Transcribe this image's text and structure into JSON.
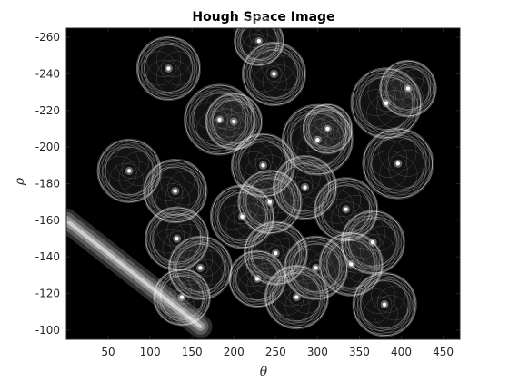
{
  "chart_data": {
    "type": "heatmap",
    "title": "Hough Space Image",
    "xlabel": "θ",
    "ylabel": "ρ",
    "xlim": [
      0,
      470
    ],
    "ylim": [
      -95,
      -265
    ],
    "y_axis_reversed": true,
    "grid": false,
    "legend": "none",
    "colormap": "gray",
    "background_color": "#000000",
    "foreground_color": "#ffffff",
    "axis_color": "#262626",
    "xticks": [
      50,
      100,
      150,
      200,
      250,
      300,
      350,
      400,
      450
    ],
    "xtick_labels": [
      "50",
      "100",
      "150",
      "200",
      "250",
      "300",
      "350",
      "400",
      "450"
    ],
    "yticks": [
      -260,
      -240,
      -220,
      -200,
      -180,
      -160,
      -140,
      -120,
      -100
    ],
    "ytick_labels": [
      "-260",
      "-240",
      "-220",
      "-200",
      "-180",
      "-160",
      "-140",
      "-120",
      "-100"
    ],
    "peaks": [
      {
        "theta": 122,
        "rho": -243,
        "radius": 18
      },
      {
        "theta": 230,
        "rho": -258,
        "radius": 14
      },
      {
        "theta": 248,
        "rho": -240,
        "radius": 18
      },
      {
        "theta": 183,
        "rho": -215,
        "radius": 20
      },
      {
        "theta": 200,
        "rho": -214,
        "radius": 16
      },
      {
        "theta": 75,
        "rho": -187,
        "radius": 18
      },
      {
        "theta": 130,
        "rho": -176,
        "radius": 18
      },
      {
        "theta": 235,
        "rho": -190,
        "radius": 18
      },
      {
        "theta": 300,
        "rho": -204,
        "radius": 20
      },
      {
        "theta": 312,
        "rho": -210,
        "radius": 14
      },
      {
        "theta": 382,
        "rho": -224,
        "radius": 20
      },
      {
        "theta": 408,
        "rho": -232,
        "radius": 16
      },
      {
        "theta": 396,
        "rho": -191,
        "radius": 20
      },
      {
        "theta": 210,
        "rho": -162,
        "radius": 18
      },
      {
        "theta": 243,
        "rho": -170,
        "radius": 18
      },
      {
        "theta": 285,
        "rho": -178,
        "radius": 18
      },
      {
        "theta": 334,
        "rho": -166,
        "radius": 18
      },
      {
        "theta": 132,
        "rho": -150,
        "radius": 18
      },
      {
        "theta": 250,
        "rho": -142,
        "radius": 18
      },
      {
        "theta": 298,
        "rho": -134,
        "radius": 18
      },
      {
        "theta": 340,
        "rho": -136,
        "radius": 18
      },
      {
        "theta": 366,
        "rho": -148,
        "radius": 18
      },
      {
        "theta": 160,
        "rho": -134,
        "radius": 18
      },
      {
        "theta": 228,
        "rho": -128,
        "radius": 16
      },
      {
        "theta": 275,
        "rho": -118,
        "radius": 18
      },
      {
        "theta": 380,
        "rho": -114,
        "radius": 18
      },
      {
        "theta": 138,
        "rho": -118,
        "radius": 16
      }
    ],
    "smear": {
      "theta_start": 0,
      "rho_start": -160,
      "theta_end": 160,
      "rho_end": -102
    }
  }
}
